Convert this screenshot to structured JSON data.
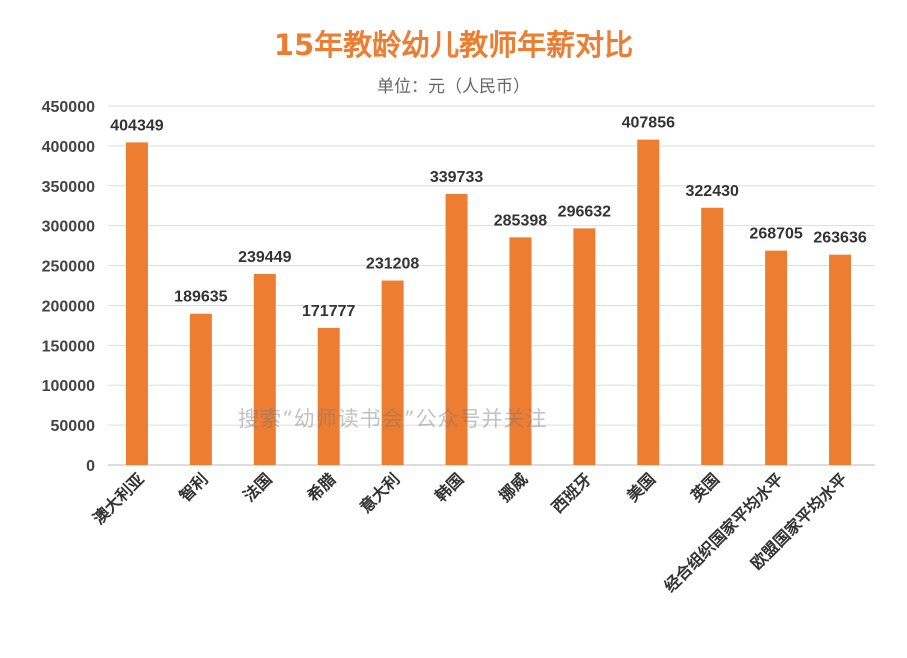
{
  "chart_data": {
    "type": "bar",
    "title": "15年教龄幼儿教师年薪对比",
    "subtitle": "单位：元（人民币）",
    "categories": [
      "澳大利亚",
      "智利",
      "法国",
      "希腊",
      "意大利",
      "韩国",
      "挪威",
      "西班牙",
      "美国",
      "英国",
      "经合组织国家平均水平",
      "欧盟国家平均水平"
    ],
    "values": [
      404349,
      189635,
      239449,
      171777,
      231208,
      339733,
      285398,
      296632,
      407856,
      322430,
      268705,
      263636
    ],
    "ylim": [
      0,
      450000
    ],
    "yticks": [
      0,
      50000,
      100000,
      150000,
      200000,
      250000,
      300000,
      350000,
      400000,
      450000
    ],
    "grid": true,
    "data_labels": true,
    "bar_color": "#ed7d31",
    "title_color": "#ed7d31"
  },
  "watermark": "搜索“幼师读书会”公众号并关注"
}
